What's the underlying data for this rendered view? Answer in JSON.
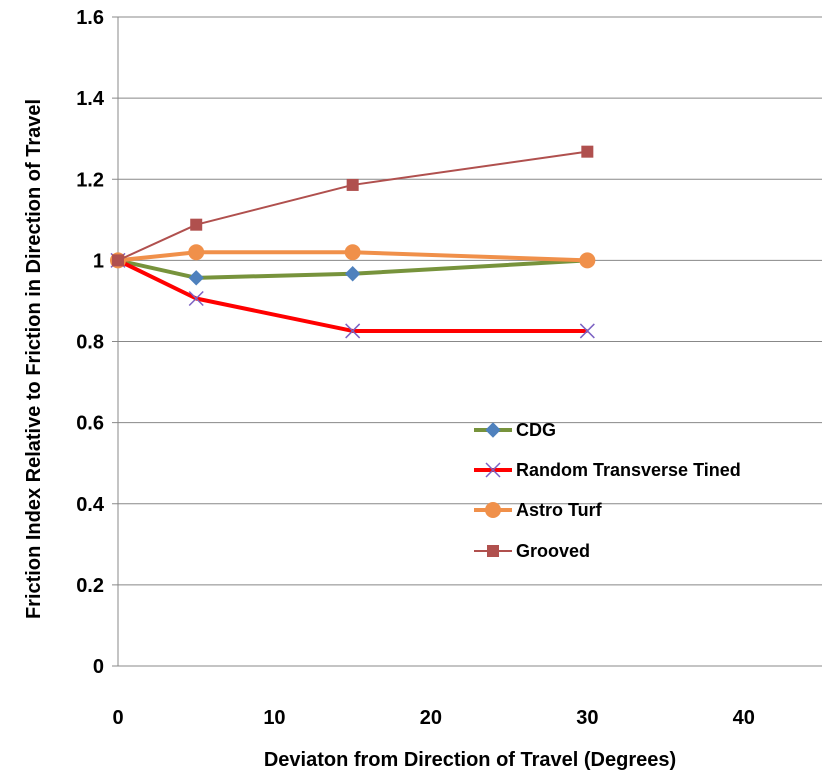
{
  "chart_data": {
    "type": "line",
    "xlabel": "Deviaton from  Direction of Travel (Degrees)",
    "ylabel": "Friction Index Relative to Friction in Direction of Travel",
    "xlim": [
      0,
      45
    ],
    "ylim": [
      0,
      1.6
    ],
    "x_ticks": [
      0,
      10,
      20,
      30,
      40
    ],
    "y_ticks": [
      0,
      0.2,
      0.4,
      0.6,
      0.8,
      1,
      1.2,
      1.4,
      1.6
    ],
    "x_tick_labels": [
      "0",
      "10",
      "20",
      "30",
      "40"
    ],
    "y_tick_labels": [
      "0",
      "0.2",
      "0.4",
      "0.6",
      "0.8",
      "1",
      "1.2",
      "1.4",
      "1.6"
    ],
    "grid": "horizontal",
    "legend_position": "center-right",
    "series": [
      {
        "name": "CDG",
        "color": "#77933C",
        "marker": "diamond",
        "marker_color": "#4F81BD",
        "line_width": 4,
        "x": [
          0,
          5,
          15,
          30
        ],
        "y": [
          1.0,
          0.957,
          0.967,
          1.0
        ]
      },
      {
        "name": "Random Transverse Tined",
        "color": "#FF0000",
        "marker": "x",
        "marker_color": "#7B61C2",
        "line_width": 4,
        "x": [
          0,
          5,
          15,
          30
        ],
        "y": [
          1.0,
          0.906,
          0.826,
          0.826
        ]
      },
      {
        "name": "Astro Turf",
        "color": "#F0904A",
        "marker": "circle",
        "marker_color": "#F0904A",
        "line_width": 4,
        "x": [
          0,
          5,
          15,
          30
        ],
        "y": [
          1.0,
          1.02,
          1.02,
          1.0
        ]
      },
      {
        "name": "Grooved",
        "color": "#B0504E",
        "marker": "square",
        "marker_color": "#B0504E",
        "line_width": 2,
        "x": [
          0,
          5,
          15,
          30
        ],
        "y": [
          1.0,
          1.088,
          1.186,
          1.268
        ]
      }
    ]
  }
}
